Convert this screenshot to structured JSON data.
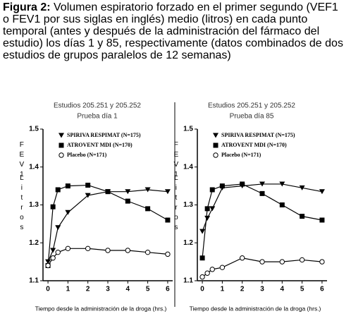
{
  "caption_label": "Figura 2:",
  "caption": "Volumen espiratorio forzado en el primer segundo (VEF1 o FEV1 por sus siglas en inglés) medio (litros) en cada punto temporal (antes y después de la administración del fármaco del estudio) los días 1 y 85, respectivamente (datos combinados de dos estudios de grupos paralelos de 12 semanas)",
  "chart_data": [
    {
      "type": "line",
      "title": "Estudios 205.251 y 205.252",
      "subtitle": "Prueba día 1",
      "x_label": "Tiempo desde la administración de la droga (hrs.)",
      "y_label": [
        "FEV1",
        "Litros"
      ],
      "x": [
        0,
        0.25,
        0.5,
        1,
        2,
        3,
        4,
        5,
        6
      ],
      "xlim": [
        -0.25,
        6.25
      ],
      "xticks": [
        0,
        1,
        2,
        3,
        4,
        5,
        6
      ],
      "ylim": [
        1.1,
        1.5
      ],
      "yticks": [
        1.1,
        1.2,
        1.3,
        1.4,
        1.5
      ],
      "series": [
        {
          "name": "SPIRIVA RESPIMAT (N=175)",
          "color": "#000000",
          "marker": "triangle-down",
          "values": [
            1.15,
            1.18,
            1.24,
            1.28,
            1.325,
            1.335,
            1.335,
            1.34,
            1.335
          ]
        },
        {
          "name": "ATROVENT MDI (N=170)",
          "color": "#000000",
          "marker": "square",
          "values": [
            1.14,
            1.295,
            1.34,
            1.35,
            1.352,
            1.335,
            1.31,
            1.29,
            1.26
          ]
        },
        {
          "name": "Placebo (N=171)",
          "color": "#000000",
          "marker": "open-circle",
          "values": [
            1.14,
            1.16,
            1.175,
            1.185,
            1.185,
            1.18,
            1.18,
            1.175,
            1.17
          ]
        }
      ]
    },
    {
      "type": "line",
      "title": "Estudios 205.251 y 205.252",
      "subtitle": "Prueba día 85",
      "x_label": "Tiempo desde la administración de la droga (hrs.)",
      "y_label": [
        "FEV1",
        "Litros"
      ],
      "x": [
        0,
        0.25,
        0.5,
        1,
        2,
        3,
        4,
        5,
        6
      ],
      "xlim": [
        -0.25,
        6.25
      ],
      "xticks": [
        0,
        1,
        2,
        3,
        4,
        5,
        6
      ],
      "ylim": [
        1.1,
        1.5
      ],
      "yticks": [
        1.1,
        1.2,
        1.3,
        1.4,
        1.5
      ],
      "series": [
        {
          "name": "SPIRIVA RESPIMAT (N=175)",
          "color": "#000000",
          "marker": "triangle-down",
          "values": [
            1.23,
            1.265,
            1.29,
            1.345,
            1.35,
            1.355,
            1.355,
            1.345,
            1.335
          ]
        },
        {
          "name": "ATROVENT MDI (N=170)",
          "color": "#000000",
          "marker": "square",
          "values": [
            1.16,
            1.29,
            1.34,
            1.35,
            1.355,
            1.33,
            1.3,
            1.27,
            1.26
          ]
        },
        {
          "name": "Placebo (N=171)",
          "color": "#000000",
          "marker": "open-circle",
          "values": [
            1.11,
            1.12,
            1.13,
            1.135,
            1.16,
            1.15,
            1.15,
            1.155,
            1.15
          ]
        }
      ]
    }
  ]
}
